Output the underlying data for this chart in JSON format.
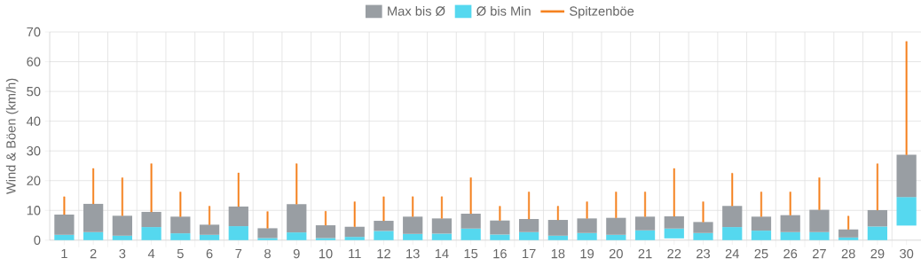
{
  "chart_data": {
    "type": "bar",
    "ylabel": "Wind & Böen (km/h)",
    "categories": [
      "1",
      "2",
      "3",
      "4",
      "5",
      "6",
      "7",
      "8",
      "9",
      "10",
      "11",
      "12",
      "13",
      "14",
      "15",
      "16",
      "17",
      "18",
      "19",
      "20",
      "21",
      "22",
      "23",
      "24",
      "25",
      "26",
      "27",
      "28",
      "29",
      "30"
    ],
    "series": [
      {
        "name": "Ø bis Min",
        "color": "#55d8ef",
        "base": [
          0,
          0,
          0,
          0,
          0,
          0,
          0,
          0,
          0,
          0,
          0,
          0,
          0,
          0,
          0,
          0,
          0,
          0,
          0,
          0,
          0,
          0.6,
          0,
          0,
          0,
          0,
          0,
          0,
          0,
          4.9
        ],
        "values": [
          1.8,
          2.7,
          1.5,
          4.4,
          2.3,
          1.8,
          4.7,
          0.7,
          2.6,
          0.7,
          1.1,
          3.1,
          2.1,
          2.2,
          3.9,
          1.9,
          2.7,
          1.5,
          2.4,
          1.8,
          3.3,
          3.3,
          2.4,
          4.4,
          3.2,
          2.7,
          2.7,
          0.9,
          4.6,
          9.6
        ]
      },
      {
        "name": "Max bis Ø",
        "color": "#999ea3",
        "base": [
          1.8,
          2.7,
          1.5,
          4.4,
          2.3,
          1.8,
          4.7,
          0.7,
          2.6,
          0.7,
          1.1,
          3.1,
          2.1,
          2.2,
          3.9,
          1.9,
          2.7,
          1.5,
          2.4,
          1.8,
          3.3,
          3.9,
          2.4,
          4.4,
          3.2,
          2.7,
          2.7,
          0.9,
          4.6,
          14.5
        ],
        "values": [
          6.8,
          9.5,
          6.7,
          5.1,
          5.6,
          3.4,
          6.6,
          3.3,
          9.5,
          4.3,
          3.4,
          3.4,
          5.8,
          5.1,
          5.0,
          4.7,
          4.4,
          5.3,
          4.9,
          5.7,
          4.6,
          4.1,
          3.7,
          7.1,
          4.7,
          5.7,
          7.5,
          2.7,
          5.5,
          14.2
        ]
      },
      {
        "name": "Spitzenböe",
        "color": "#f5821f",
        "line_style": "solid",
        "base": [
          8.6,
          12.2,
          8.2,
          9.5,
          7.9,
          5.2,
          11.3,
          4.0,
          12.1,
          5.0,
          4.5,
          6.5,
          7.9,
          7.3,
          8.9,
          6.6,
          7.1,
          6.8,
          7.3,
          7.5,
          7.9,
          8.0,
          6.1,
          11.5,
          7.9,
          8.4,
          10.2,
          3.6,
          10.1,
          28.7
        ],
        "values": [
          6.0,
          11.9,
          12.8,
          16.2,
          8.3,
          6.2,
          11.3,
          5.6,
          13.6,
          4.7,
          8.4,
          8.1,
          6.7,
          7.3,
          12.1,
          4.8,
          9.1,
          4.6,
          5.6,
          8.7,
          8.3,
          16.1,
          6.8,
          11.0,
          8.3,
          7.8,
          10.8,
          4.5,
          15.6,
          38.1
        ]
      }
    ],
    "ylim": [
      0,
      70
    ],
    "yticks": [
      0,
      10,
      20,
      30,
      40,
      50,
      60,
      70
    ],
    "grid": true,
    "legend": "top"
  }
}
